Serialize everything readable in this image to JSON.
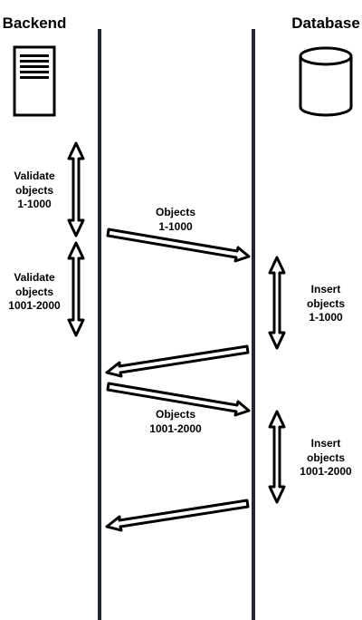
{
  "participants": {
    "backend": {
      "label": "Backend",
      "icon": "server-icon"
    },
    "database": {
      "label": "Database",
      "icon": "database-icon"
    }
  },
  "colors": {
    "lifeline": "#23272f",
    "stroke": "#000000",
    "fill": "#ffffff"
  },
  "notes": {
    "validate_1": [
      "Validate",
      "objects",
      "1-1000"
    ],
    "validate_2": [
      "Validate",
      "objects",
      "1001-2000"
    ],
    "insert_1": [
      "Insert",
      "objects",
      "1-1000"
    ],
    "insert_2": [
      "Insert",
      "objects",
      "1001-2000"
    ]
  },
  "messages": {
    "send_1": [
      "Objects",
      "1-1000"
    ],
    "send_2": [
      "Objects",
      "1001-2000"
    ],
    "ack_1": [],
    "ack_2": []
  }
}
